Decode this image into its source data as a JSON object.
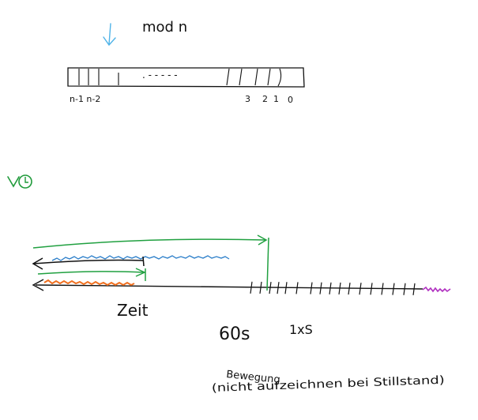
{
  "top": {
    "label": "mod n",
    "left_indices": "n-1 n-2",
    "right_indices": [
      "3",
      "2",
      "1",
      "0"
    ],
    "dots": ". - - - - -",
    "arrow_color": "#4fb3e8"
  },
  "clock": {
    "icon": "clock-check-icon",
    "color": "#1f9a3a"
  },
  "timeline": {
    "axis_label": "Zeit",
    "label_60s": "60s",
    "label_rate": "1xS",
    "motion_title": "Bewegung",
    "motion_note": "(nicht aufzeichnen bei Stillstand)",
    "colors": {
      "green": "#20a040",
      "blue": "#2b7ec9",
      "orange": "#f07020",
      "purple": "#b030c0",
      "black": "#111111"
    }
  }
}
